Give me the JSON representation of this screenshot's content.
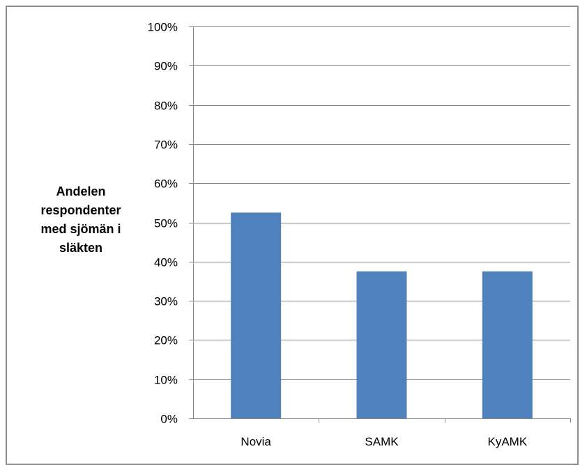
{
  "chart_data": {
    "type": "bar",
    "categories": [
      "Novia",
      "SAMK",
      "KyAMK"
    ],
    "values": [
      52.5,
      37.5,
      37.5
    ],
    "ylabel_lines": [
      "Andelen",
      "respondenter",
      "med sjömän i",
      "släkten"
    ],
    "ylim": [
      0,
      100
    ],
    "yticks": [
      "0%",
      "10%",
      "20%",
      "30%",
      "40%",
      "50%",
      "60%",
      "70%",
      "80%",
      "90%",
      "100%"
    ],
    "grid": true,
    "legend": "none",
    "colors": {
      "bar": "#4f81bd",
      "grid": "#868686",
      "axis": "#868686"
    }
  }
}
